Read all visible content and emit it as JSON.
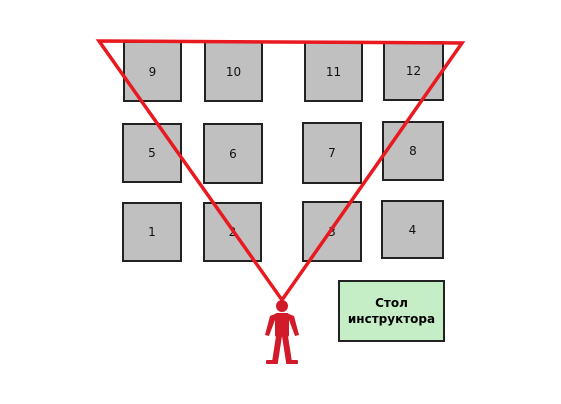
{
  "seats": [
    {
      "label": "9"
    },
    {
      "label": "10"
    },
    {
      "label": "11"
    },
    {
      "label": "12"
    },
    {
      "label": "5"
    },
    {
      "label": "6"
    },
    {
      "label": "7"
    },
    {
      "label": "8"
    },
    {
      "label": "1"
    },
    {
      "label": "2"
    },
    {
      "label": "3"
    },
    {
      "label": "4"
    }
  ],
  "instructor_desk": {
    "line1": "Стол",
    "line2": "инструктора"
  },
  "colors": {
    "seat_fill": "#c0c0c0",
    "desk_fill": "#c6eec6",
    "view_triangle": "#e8191f",
    "person": "#d11b2a"
  },
  "icons": {
    "person": "person-icon"
  }
}
